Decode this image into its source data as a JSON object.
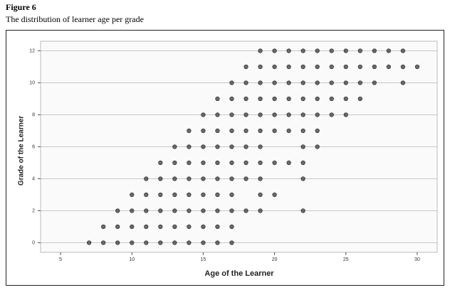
{
  "figure_label": "Figure 6",
  "chart_data": {
    "type": "scatter",
    "title": "The distribution of learner age per grade",
    "x_label": "Age of the Learner",
    "y_label": "Grade of the Learner",
    "color": "#505050",
    "grid": true,
    "xlim": [
      3.6,
      31.4
    ],
    "ylim": [
      -0.6,
      12.6
    ],
    "xticks": [
      5,
      10,
      15,
      20,
      25,
      30
    ],
    "yticks": [
      0,
      2,
      4,
      6,
      8,
      10,
      12
    ],
    "x": [
      7,
      8,
      9,
      10,
      11,
      12,
      13,
      14,
      15,
      16,
      17,
      8,
      9,
      10,
      11,
      12,
      13,
      14,
      15,
      16,
      17,
      9,
      10,
      11,
      12,
      13,
      14,
      15,
      16,
      17,
      18,
      19,
      22,
      10,
      11,
      12,
      13,
      14,
      15,
      16,
      17,
      19,
      20,
      11,
      12,
      13,
      14,
      15,
      16,
      17,
      18,
      19,
      22,
      12,
      13,
      14,
      15,
      16,
      17,
      18,
      19,
      20,
      21,
      22,
      13,
      14,
      15,
      16,
      17,
      18,
      19,
      22,
      23,
      14,
      15,
      16,
      17,
      18,
      19,
      20,
      21,
      22,
      23,
      15,
      16,
      17,
      18,
      19,
      20,
      21,
      22,
      23,
      24,
      25,
      16,
      17,
      18,
      19,
      20,
      21,
      22,
      23,
      24,
      25,
      26,
      17,
      18,
      19,
      20,
      21,
      22,
      23,
      24,
      25,
      26,
      27,
      29,
      18,
      19,
      20,
      21,
      22,
      23,
      24,
      25,
      26,
      27,
      28,
      29,
      30,
      19,
      20,
      21,
      22,
      23,
      24,
      25,
      26,
      27,
      28,
      29
    ],
    "values": [
      0,
      0,
      0,
      0,
      0,
      0,
      0,
      0,
      0,
      0,
      0,
      1,
      1,
      1,
      1,
      1,
      1,
      1,
      1,
      1,
      1,
      2,
      2,
      2,
      2,
      2,
      2,
      2,
      2,
      2,
      2,
      2,
      2,
      3,
      3,
      3,
      3,
      3,
      3,
      3,
      3,
      3,
      3,
      4,
      4,
      4,
      4,
      4,
      4,
      4,
      4,
      4,
      4,
      5,
      5,
      5,
      5,
      5,
      5,
      5,
      5,
      5,
      5,
      5,
      6,
      6,
      6,
      6,
      6,
      6,
      6,
      6,
      6,
      7,
      7,
      7,
      7,
      7,
      7,
      7,
      7,
      7,
      7,
      8,
      8,
      8,
      8,
      8,
      8,
      8,
      8,
      8,
      8,
      8,
      9,
      9,
      9,
      9,
      9,
      9,
      9,
      9,
      9,
      9,
      9,
      10,
      10,
      10,
      10,
      10,
      10,
      10,
      10,
      10,
      10,
      10,
      10,
      11,
      11,
      11,
      11,
      11,
      11,
      11,
      11,
      11,
      11,
      11,
      11,
      11,
      12,
      12,
      12,
      12,
      12,
      12,
      12,
      12,
      12,
      12,
      12
    ]
  }
}
